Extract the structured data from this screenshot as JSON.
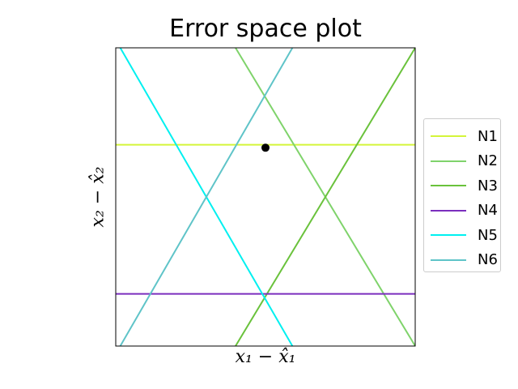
{
  "chart_data": {
    "type": "line",
    "title": "Error space plot",
    "xlabel": "x₁ − x̂₁",
    "ylabel": "x₂ − x̂₂",
    "xlim": [
      -1,
      1
    ],
    "ylim": [
      -1,
      1
    ],
    "grid": false,
    "legend_placement": "outside-right",
    "point": {
      "x": 0,
      "y": 0.33,
      "color": "#000000"
    },
    "series": [
      {
        "name": "N1",
        "color": "#d4f53a",
        "x": [
          -1,
          1
        ],
        "y": [
          0.35,
          0.35
        ]
      },
      {
        "name": "N2",
        "color": "#7fd36b",
        "x": [
          -0.2,
          1
        ],
        "y": [
          1,
          -1
        ]
      },
      {
        "name": "N3",
        "color": "#6ac23c",
        "x": [
          -0.2,
          1
        ],
        "y": [
          -1,
          1
        ]
      },
      {
        "name": "N4",
        "color": "#7b2fbe",
        "x": [
          -1,
          1
        ],
        "y": [
          -0.65,
          -0.65
        ]
      },
      {
        "name": "N5",
        "color": "#00f0f0",
        "x": [
          -0.97,
          0.18
        ],
        "y": [
          1,
          -1
        ]
      },
      {
        "name": "N6",
        "color": "#5fc4c8",
        "x": [
          -0.97,
          0.18
        ],
        "y": [
          -1,
          1
        ]
      }
    ]
  }
}
